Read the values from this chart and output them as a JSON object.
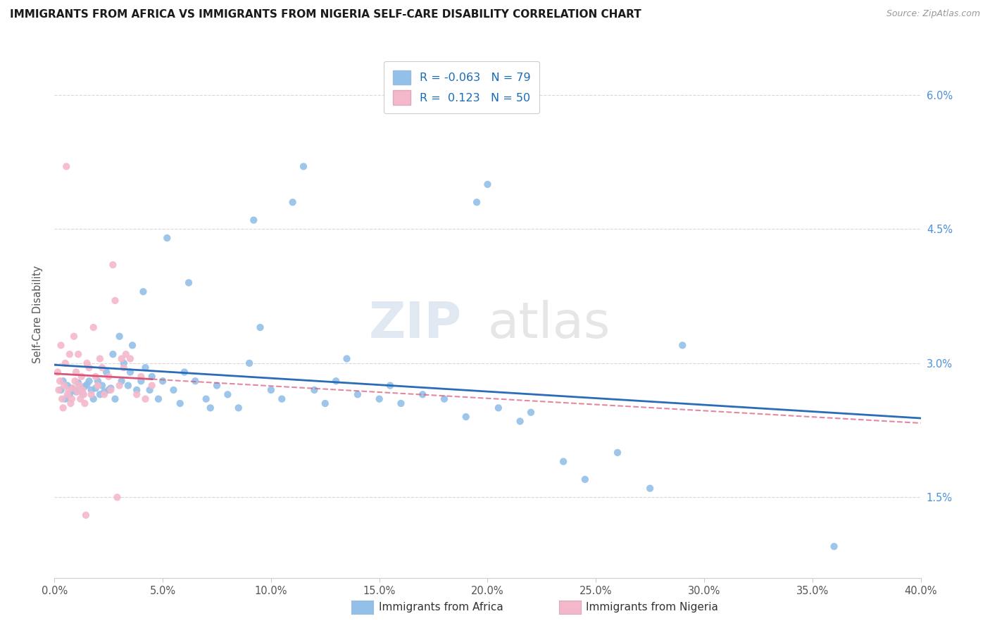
{
  "title": "IMMIGRANTS FROM AFRICA VS IMMIGRANTS FROM NIGERIA SELF-CARE DISABILITY CORRELATION CHART",
  "source": "Source: ZipAtlas.com",
  "ylabel": "Self-Care Disability",
  "yaxis_values": [
    1.5,
    3.0,
    4.5,
    6.0
  ],
  "xmin": 0.0,
  "xmax": 40.0,
  "ymin": 0.6,
  "ymax": 6.5,
  "legend_blue_R": "-0.063",
  "legend_blue_N": "79",
  "legend_pink_R": "0.123",
  "legend_pink_N": "50",
  "legend_label_blue": "Immigrants from Africa",
  "legend_label_pink": "Immigrants from Nigeria",
  "blue_color": "#92c0e8",
  "pink_color": "#f5b8cb",
  "blue_line_color": "#2b6cb8",
  "pink_line_color": "#d9567a",
  "blue_scatter": [
    [
      0.3,
      2.7
    ],
    [
      0.4,
      2.8
    ],
    [
      0.5,
      2.6
    ],
    [
      0.6,
      2.75
    ],
    [
      0.7,
      2.65
    ],
    [
      0.8,
      2.72
    ],
    [
      0.9,
      2.7
    ],
    [
      1.0,
      2.68
    ],
    [
      1.1,
      2.78
    ],
    [
      1.2,
      2.72
    ],
    [
      1.3,
      2.66
    ],
    [
      1.4,
      2.74
    ],
    [
      1.5,
      2.76
    ],
    [
      1.6,
      2.8
    ],
    [
      1.7,
      2.7
    ],
    [
      1.8,
      2.6
    ],
    [
      1.9,
      2.72
    ],
    [
      2.0,
      2.8
    ],
    [
      2.1,
      2.65
    ],
    [
      2.2,
      2.75
    ],
    [
      2.3,
      2.68
    ],
    [
      2.4,
      2.9
    ],
    [
      2.5,
      2.7
    ],
    [
      2.6,
      2.72
    ],
    [
      2.7,
      3.1
    ],
    [
      2.8,
      2.6
    ],
    [
      3.0,
      3.3
    ],
    [
      3.1,
      2.8
    ],
    [
      3.2,
      3.0
    ],
    [
      3.4,
      2.75
    ],
    [
      3.5,
      2.9
    ],
    [
      3.6,
      3.2
    ],
    [
      3.8,
      2.7
    ],
    [
      4.0,
      2.8
    ],
    [
      4.1,
      3.8
    ],
    [
      4.2,
      2.95
    ],
    [
      4.4,
      2.7
    ],
    [
      4.5,
      2.85
    ],
    [
      4.8,
      2.6
    ],
    [
      5.0,
      2.8
    ],
    [
      5.2,
      4.4
    ],
    [
      5.5,
      2.7
    ],
    [
      5.8,
      2.55
    ],
    [
      6.0,
      2.9
    ],
    [
      6.2,
      3.9
    ],
    [
      6.5,
      2.8
    ],
    [
      7.0,
      2.6
    ],
    [
      7.2,
      2.5
    ],
    [
      7.5,
      2.75
    ],
    [
      8.0,
      2.65
    ],
    [
      8.5,
      2.5
    ],
    [
      9.0,
      3.0
    ],
    [
      9.2,
      4.6
    ],
    [
      9.5,
      3.4
    ],
    [
      10.0,
      2.7
    ],
    [
      10.5,
      2.6
    ],
    [
      11.0,
      4.8
    ],
    [
      11.5,
      5.2
    ],
    [
      12.0,
      2.7
    ],
    [
      12.5,
      2.55
    ],
    [
      13.0,
      2.8
    ],
    [
      13.5,
      3.05
    ],
    [
      14.0,
      2.65
    ],
    [
      15.0,
      2.6
    ],
    [
      15.5,
      2.75
    ],
    [
      16.0,
      2.55
    ],
    [
      17.0,
      2.65
    ],
    [
      18.0,
      2.6
    ],
    [
      19.0,
      2.4
    ],
    [
      19.5,
      4.8
    ],
    [
      20.0,
      5.0
    ],
    [
      20.5,
      2.5
    ],
    [
      21.5,
      2.35
    ],
    [
      22.0,
      2.45
    ],
    [
      23.5,
      1.9
    ],
    [
      24.5,
      1.7
    ],
    [
      26.0,
      2.0
    ],
    [
      27.5,
      1.6
    ],
    [
      29.0,
      3.2
    ],
    [
      36.0,
      0.95
    ]
  ],
  "pink_scatter": [
    [
      0.15,
      2.9
    ],
    [
      0.2,
      2.7
    ],
    [
      0.25,
      2.8
    ],
    [
      0.3,
      3.2
    ],
    [
      0.35,
      2.6
    ],
    [
      0.4,
      2.5
    ],
    [
      0.45,
      2.75
    ],
    [
      0.5,
      3.0
    ],
    [
      0.55,
      5.2
    ],
    [
      0.6,
      2.65
    ],
    [
      0.65,
      2.7
    ],
    [
      0.7,
      3.1
    ],
    [
      0.75,
      2.55
    ],
    [
      0.8,
      2.6
    ],
    [
      0.85,
      2.72
    ],
    [
      0.9,
      3.3
    ],
    [
      0.95,
      2.8
    ],
    [
      1.0,
      2.9
    ],
    [
      1.05,
      2.68
    ],
    [
      1.1,
      3.1
    ],
    [
      1.15,
      2.75
    ],
    [
      1.2,
      2.6
    ],
    [
      1.25,
      2.85
    ],
    [
      1.3,
      2.7
    ],
    [
      1.35,
      2.65
    ],
    [
      1.4,
      2.55
    ],
    [
      1.45,
      1.3
    ],
    [
      1.5,
      3.0
    ],
    [
      1.6,
      2.95
    ],
    [
      1.7,
      2.65
    ],
    [
      1.8,
      3.4
    ],
    [
      1.9,
      2.85
    ],
    [
      2.0,
      2.75
    ],
    [
      2.1,
      3.05
    ],
    [
      2.2,
      2.95
    ],
    [
      2.3,
      2.65
    ],
    [
      2.5,
      2.85
    ],
    [
      2.6,
      2.7
    ],
    [
      2.7,
      4.1
    ],
    [
      2.8,
      3.7
    ],
    [
      2.9,
      1.5
    ],
    [
      3.0,
      2.75
    ],
    [
      3.1,
      3.05
    ],
    [
      3.2,
      2.95
    ],
    [
      3.3,
      3.1
    ],
    [
      3.5,
      3.05
    ],
    [
      3.8,
      2.65
    ],
    [
      4.0,
      2.85
    ],
    [
      4.2,
      2.6
    ],
    [
      4.5,
      2.75
    ]
  ]
}
